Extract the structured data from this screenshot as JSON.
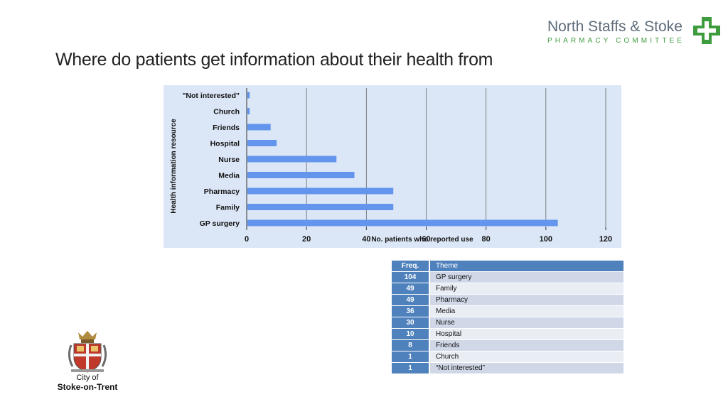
{
  "slide": {
    "title": "Where do patients get information about their health from"
  },
  "logo": {
    "name": "North Staffs & Stoke",
    "sub": "PHARMACY COMMITTEE",
    "icon": "green-cross-icon",
    "accent": "#3e9b3e"
  },
  "city_logo": {
    "line1": "City of",
    "line2": "Stoke-on-Trent",
    "icon": "coat-of-arms-icon"
  },
  "chart_data": {
    "type": "bar",
    "orientation": "horizontal",
    "categories": [
      "\"Not interested\"",
      "Church",
      "Friends",
      "Hospital",
      "Nurse",
      "Media",
      "Pharmacy",
      "Family",
      "GP surgery"
    ],
    "values": [
      1,
      1,
      8,
      10,
      30,
      36,
      49,
      49,
      104
    ],
    "xlabel": "No. patients who reported use",
    "ylabel": "Health information resource",
    "xlim": [
      0,
      120
    ],
    "xticks": [
      0,
      20,
      40,
      60,
      80,
      100,
      120
    ],
    "grid": true,
    "bar_color": "#6495ed",
    "background": "#dbe6f6"
  },
  "table": {
    "headers": [
      "Freq.",
      "Theme"
    ],
    "rows": [
      {
        "freq": "104",
        "theme": "GP surgery"
      },
      {
        "freq": "49",
        "theme": "Family"
      },
      {
        "freq": "49",
        "theme": "Pharmacy"
      },
      {
        "freq": "36",
        "theme": "Media"
      },
      {
        "freq": "30",
        "theme": "Nurse"
      },
      {
        "freq": "10",
        "theme": "Hospital"
      },
      {
        "freq": "8",
        "theme": "Friends"
      },
      {
        "freq": "1",
        "theme": "Church"
      },
      {
        "freq": "1",
        "theme": "“Not interested”"
      }
    ]
  }
}
